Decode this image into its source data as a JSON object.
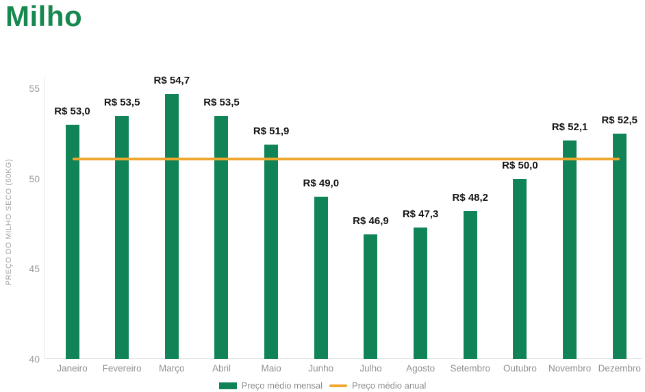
{
  "page_title": "Milho",
  "chart_data": {
    "type": "bar",
    "title": "Milho",
    "ylabel": "PREÇO DO MILHO SECO (60KG)",
    "xlabel": "",
    "ylim": [
      40,
      55.7
    ],
    "yticks": [
      40,
      45,
      50,
      55
    ],
    "grid": false,
    "legend_position": "bottom",
    "categories": [
      "Janeiro",
      "Fevereiro",
      "Março",
      "Abril",
      "Maio",
      "Junho",
      "Julho",
      "Agosto",
      "Setembro",
      "Outubro",
      "Novembro",
      "Dezembro"
    ],
    "series": [
      {
        "name": "Preço médio mensal",
        "type": "bar",
        "color": "#108457",
        "values": [
          53.0,
          53.5,
          54.7,
          53.5,
          51.9,
          49.0,
          46.9,
          47.3,
          48.2,
          50.0,
          52.1,
          52.5
        ],
        "value_labels": [
          "R$ 53,0",
          "R$ 53,5",
          "R$ 54,7",
          "R$ 53,5",
          "R$ 51,9",
          "R$ 49,0",
          "R$ 46,9",
          "R$ 47,3",
          "R$ 48,2",
          "R$ 50,0",
          "R$ 52,1",
          "R$ 52,5"
        ]
      },
      {
        "name": "Preço médio anual",
        "type": "line",
        "color": "#EFA82D",
        "value": 51.1
      }
    ],
    "colors": {
      "title_green": "#17884F",
      "bar_green": "#108457",
      "annual_orange": "#EFA82D",
      "axis_text": "#9b9b9b",
      "data_label": "#141414"
    }
  },
  "legend": {
    "items": [
      {
        "label": "Preço médio mensal",
        "swatch": "bar-swatch",
        "color": "#108457"
      },
      {
        "label": "Preço médio anual",
        "swatch": "line-swatch",
        "color": "#EFA82D"
      }
    ]
  }
}
